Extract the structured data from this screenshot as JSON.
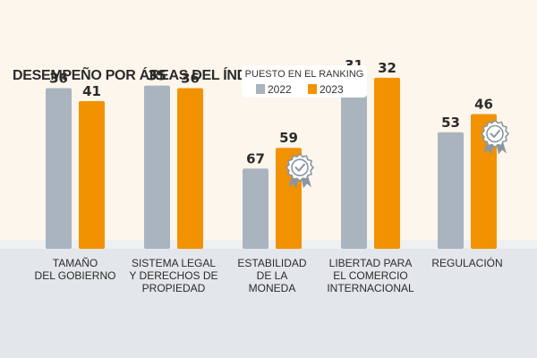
{
  "chart_data": {
    "type": "bar",
    "title": "DESEMPEÑO POR ÁREAS DEL ÍNDICE",
    "legend": {
      "heading": "PUESTO EN EL RANKING",
      "placement": "top-center"
    },
    "categories": [
      [
        "TAMAÑO",
        "DEL GOBIERNO"
      ],
      [
        "SISTEMA LEGAL",
        "Y DERECHOS DE",
        "PROPIEDAD"
      ],
      [
        "ESTABILIDAD",
        "DE LA",
        "MONEDA"
      ],
      [
        "LIBERTAD PARA",
        "EL COMERCIO",
        "INTERNACIONAL"
      ],
      [
        "REGULACIÓN"
      ]
    ],
    "series": [
      {
        "name": "2022",
        "color": "#a9b4bf",
        "values": [
          36,
          35,
          67,
          31,
          53
        ]
      },
      {
        "name": "2023",
        "color": "#f39200",
        "values": [
          41,
          36,
          59,
          32,
          46
        ]
      }
    ],
    "badges": [
      {
        "category_index": 2,
        "series": "2023",
        "icon": "rosette-check-icon"
      },
      {
        "category_index": 4,
        "series": "2023",
        "icon": "rosette-check-icon"
      }
    ],
    "grid": false
  }
}
